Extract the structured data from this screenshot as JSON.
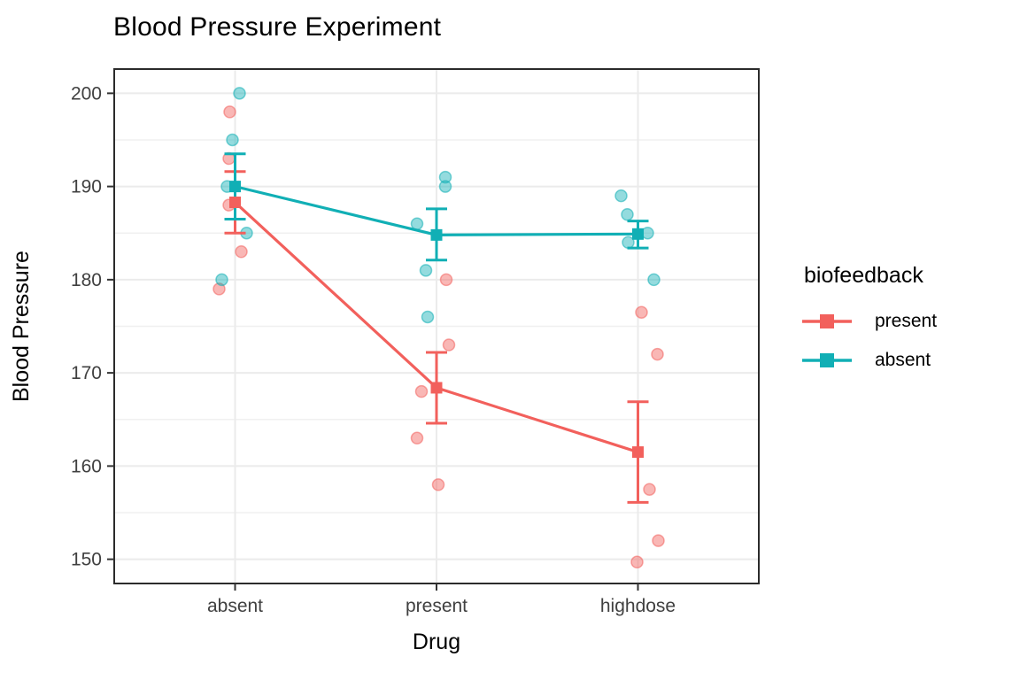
{
  "chart_data": {
    "type": "scatter",
    "title": "Blood Pressure Experiment",
    "xlabel": "Drug",
    "ylabel": "Blood Pressure",
    "categories": [
      "absent",
      "present",
      "highdose"
    ],
    "y_ticks": [
      150,
      160,
      170,
      180,
      190,
      200
    ],
    "y_minor_ticks": [
      155,
      165,
      175,
      185,
      195
    ],
    "ylim": [
      147.4,
      202.6
    ],
    "grid": "on",
    "legend_position": "right",
    "legend": {
      "title": "biofeedback",
      "entries": [
        {
          "label": "present",
          "color": "#F2605C"
        },
        {
          "label": "absent",
          "color": "#11AFB5"
        }
      ]
    },
    "series": [
      {
        "name": "present",
        "color": "#F2605C",
        "means": [
          188.3,
          168.4,
          161.5
        ],
        "err_low": [
          185.0,
          164.6,
          156.1
        ],
        "err_high": [
          191.6,
          172.2,
          166.9
        ],
        "points": [
          {
            "cat": 0,
            "value": 198,
            "dx": -6
          },
          {
            "cat": 0,
            "value": 193,
            "dx": -7
          },
          {
            "cat": 0,
            "value": 188,
            "dx": -7
          },
          {
            "cat": 0,
            "value": 183,
            "dx": 7
          },
          {
            "cat": 0,
            "value": 179,
            "dx": -18
          },
          {
            "cat": 1,
            "value": 180,
            "dx": 11
          },
          {
            "cat": 1,
            "value": 173,
            "dx": 14
          },
          {
            "cat": 1,
            "value": 168,
            "dx": -17
          },
          {
            "cat": 1,
            "value": 163,
            "dx": -22
          },
          {
            "cat": 1,
            "value": 158,
            "dx": 2
          },
          {
            "cat": 2,
            "value": 176.5,
            "dx": 4
          },
          {
            "cat": 2,
            "value": 172,
            "dx": 22
          },
          {
            "cat": 2,
            "value": 157.5,
            "dx": 13
          },
          {
            "cat": 2,
            "value": 152,
            "dx": 23
          },
          {
            "cat": 2,
            "value": 149.7,
            "dx": -1
          }
        ]
      },
      {
        "name": "absent",
        "color": "#11AFB5",
        "means": [
          190.0,
          184.8,
          184.9
        ],
        "err_low": [
          186.5,
          182.1,
          183.4
        ],
        "err_high": [
          193.5,
          187.6,
          186.3
        ],
        "points": [
          {
            "cat": 0,
            "value": 200,
            "dx": 5
          },
          {
            "cat": 0,
            "value": 195,
            "dx": -3
          },
          {
            "cat": 0,
            "value": 190,
            "dx": -9
          },
          {
            "cat": 0,
            "value": 185,
            "dx": 13
          },
          {
            "cat": 0,
            "value": 180,
            "dx": -15
          },
          {
            "cat": 1,
            "value": 191,
            "dx": 10
          },
          {
            "cat": 1,
            "value": 190,
            "dx": 10
          },
          {
            "cat": 1,
            "value": 186,
            "dx": -22
          },
          {
            "cat": 1,
            "value": 181,
            "dx": -12
          },
          {
            "cat": 1,
            "value": 176,
            "dx": -10
          },
          {
            "cat": 2,
            "value": 189,
            "dx": -19
          },
          {
            "cat": 2,
            "value": 187,
            "dx": -12
          },
          {
            "cat": 2,
            "value": 185,
            "dx": 11
          },
          {
            "cat": 2,
            "value": 184,
            "dx": -11
          },
          {
            "cat": 2,
            "value": 180,
            "dx": 18
          }
        ]
      }
    ],
    "style": {
      "grid_major_color": "#EBEBEB",
      "grid_minor_color": "#F0F0F0",
      "panel_border_color": "#2B2B2B",
      "tick_label_color": "#404040",
      "point_alpha": 0.45
    }
  }
}
